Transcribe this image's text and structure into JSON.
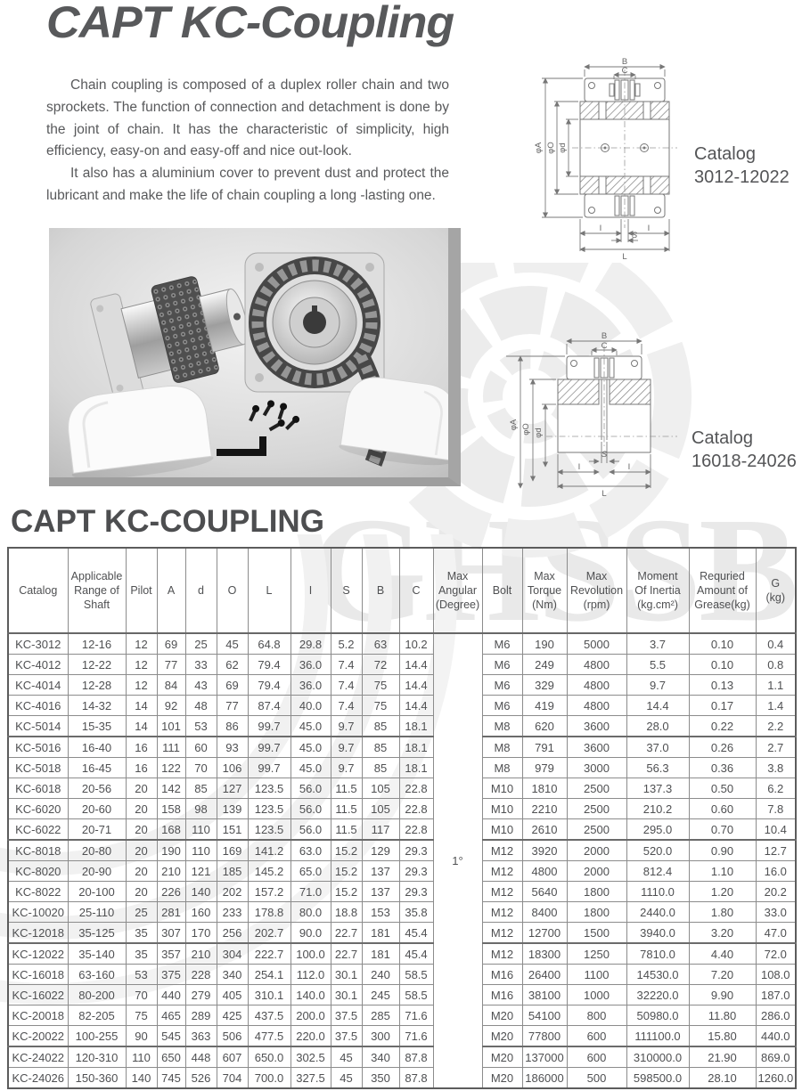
{
  "page": {
    "title": "CAPT KC-Coupling",
    "section_heading": "CAPT KC-COUPLING",
    "watermark": "GHSSB",
    "intro": {
      "para1": "Chain coupling is composed of a duplex roller chain and two sprockets. The function of connection and detachment is done by the joint of chain. It has the characteristic of simplicity, high efficiency, easy-on and easy-off and nice out-look.",
      "para2": "It also has a aluminium cover to prevent dust and protect the lubricant and make the life of chain coupling a long -lasting one."
    }
  },
  "drawings": [
    {
      "caption": [
        "Catalog",
        "3012-12022"
      ],
      "labels": {
        "B": "B",
        "C": "C",
        "phiA": "φA",
        "phiO": "φO",
        "phid": "φd",
        "I_left": "I",
        "S": "S",
        "I_right": "I",
        "L": "L"
      }
    },
    {
      "caption": [
        "Catalog",
        "16018-24026"
      ],
      "labels": {
        "B": "B",
        "C": "C",
        "phiA": "φA",
        "phiO": "φO",
        "phid": "φd",
        "I_left": "I",
        "S": "S",
        "I_right": "I",
        "L": "L"
      }
    }
  ],
  "table": {
    "columns": [
      {
        "id": "catalog",
        "label": "Catalog"
      },
      {
        "id": "range",
        "label": "Applicable\nRange of\nShaft"
      },
      {
        "id": "pilot",
        "label": "Pilot"
      },
      {
        "id": "a",
        "label": "A"
      },
      {
        "id": "d",
        "label": "d"
      },
      {
        "id": "o",
        "label": "O"
      },
      {
        "id": "l",
        "label": "L"
      },
      {
        "id": "i",
        "label": "I"
      },
      {
        "id": "s",
        "label": "S"
      },
      {
        "id": "b",
        "label": "B"
      },
      {
        "id": "c",
        "label": "C"
      },
      {
        "id": "maxang",
        "label": "Max\nAngular\n(Degree)"
      },
      {
        "id": "bolt",
        "label": "Bolt"
      },
      {
        "id": "torque",
        "label": "Max\nTorque\n(Nm)"
      },
      {
        "id": "rev",
        "label": "Max\nRevolution\n(rpm)"
      },
      {
        "id": "inertia",
        "label": "Moment\nOf Inertia\n(kg.cm²)"
      },
      {
        "id": "grease",
        "label": "Requried\nAmount of\nGrease(kg)"
      },
      {
        "id": "g",
        "label": "G\n(kg)"
      }
    ],
    "row_col_ids": [
      "catalog",
      "range",
      "pilot",
      "a",
      "d",
      "o",
      "l",
      "i",
      "s",
      "b",
      "c",
      "bolt",
      "torque",
      "rev",
      "inertia",
      "grease",
      "g"
    ],
    "max_angular": "1°",
    "groups": [
      [
        [
          "KC-3012",
          "12-16",
          "12",
          "69",
          "25",
          "45",
          "64.8",
          "29.8",
          "5.2",
          "63",
          "10.2",
          "M6",
          "190",
          "5000",
          "3.7",
          "0.10",
          "0.4"
        ],
        [
          "KC-4012",
          "12-22",
          "12",
          "77",
          "33",
          "62",
          "79.4",
          "36.0",
          "7.4",
          "72",
          "14.4",
          "M6",
          "249",
          "4800",
          "5.5",
          "0.10",
          "0.8"
        ],
        [
          "KC-4014",
          "12-28",
          "12",
          "84",
          "43",
          "69",
          "79.4",
          "36.0",
          "7.4",
          "75",
          "14.4",
          "M6",
          "329",
          "4800",
          "9.7",
          "0.13",
          "1.1"
        ],
        [
          "KC-4016",
          "14-32",
          "14",
          "92",
          "48",
          "77",
          "87.4",
          "40.0",
          "7.4",
          "75",
          "14.4",
          "M6",
          "419",
          "4800",
          "14.4",
          "0.17",
          "1.4"
        ],
        [
          "KC-5014",
          "15-35",
          "14",
          "101",
          "53",
          "86",
          "99.7",
          "45.0",
          "9.7",
          "85",
          "18.1",
          "M8",
          "620",
          "3600",
          "28.0",
          "0.22",
          "2.2"
        ]
      ],
      [
        [
          "KC-5016",
          "16-40",
          "16",
          "111",
          "60",
          "93",
          "99.7",
          "45.0",
          "9.7",
          "85",
          "18.1",
          "M8",
          "791",
          "3600",
          "37.0",
          "0.26",
          "2.7"
        ],
        [
          "KC-5018",
          "16-45",
          "16",
          "122",
          "70",
          "106",
          "99.7",
          "45.0",
          "9.7",
          "85",
          "18.1",
          "M8",
          "979",
          "3000",
          "56.3",
          "0.36",
          "3.8"
        ],
        [
          "KC-6018",
          "20-56",
          "20",
          "142",
          "85",
          "127",
          "123.5",
          "56.0",
          "11.5",
          "105",
          "22.8",
          "M10",
          "1810",
          "2500",
          "137.3",
          "0.50",
          "6.2"
        ],
        [
          "KC-6020",
          "20-60",
          "20",
          "158",
          "98",
          "139",
          "123.5",
          "56.0",
          "11.5",
          "105",
          "22.8",
          "M10",
          "2210",
          "2500",
          "210.2",
          "0.60",
          "7.8"
        ],
        [
          "KC-6022",
          "20-71",
          "20",
          "168",
          "110",
          "151",
          "123.5",
          "56.0",
          "11.5",
          "117",
          "22.8",
          "M10",
          "2610",
          "2500",
          "295.0",
          "0.70",
          "10.4"
        ]
      ],
      [
        [
          "KC-8018",
          "20-80",
          "20",
          "190",
          "110",
          "169",
          "141.2",
          "63.0",
          "15.2",
          "129",
          "29.3",
          "M12",
          "3920",
          "2000",
          "520.0",
          "0.90",
          "12.7"
        ],
        [
          "KC-8020",
          "20-90",
          "20",
          "210",
          "121",
          "185",
          "145.2",
          "65.0",
          "15.2",
          "137",
          "29.3",
          "M12",
          "4800",
          "2000",
          "812.4",
          "1.10",
          "16.0"
        ],
        [
          "KC-8022",
          "20-100",
          "20",
          "226",
          "140",
          "202",
          "157.2",
          "71.0",
          "15.2",
          "137",
          "29.3",
          "M12",
          "5640",
          "1800",
          "1110.0",
          "1.20",
          "20.2"
        ],
        [
          "KC-10020",
          "25-110",
          "25",
          "281",
          "160",
          "233",
          "178.8",
          "80.0",
          "18.8",
          "153",
          "35.8",
          "M12",
          "8400",
          "1800",
          "2440.0",
          "1.80",
          "33.0"
        ],
        [
          "KC-12018",
          "35-125",
          "35",
          "307",
          "170",
          "256",
          "202.7",
          "90.0",
          "22.7",
          "181",
          "45.4",
          "M12",
          "12700",
          "1500",
          "3940.0",
          "3.20",
          "47.0"
        ]
      ],
      [
        [
          "KC-12022",
          "35-140",
          "35",
          "357",
          "210",
          "304",
          "222.7",
          "100.0",
          "22.7",
          "181",
          "45.4",
          "M12",
          "18300",
          "1250",
          "7810.0",
          "4.40",
          "72.0"
        ],
        [
          "KC-16018",
          "63-160",
          "53",
          "375",
          "228",
          "340",
          "254.1",
          "112.0",
          "30.1",
          "240",
          "58.5",
          "M16",
          "26400",
          "1100",
          "14530.0",
          "7.20",
          "108.0"
        ],
        [
          "KC-16022",
          "80-200",
          "70",
          "440",
          "279",
          "405",
          "310.1",
          "140.0",
          "30.1",
          "245",
          "58.5",
          "M16",
          "38100",
          "1000",
          "32220.0",
          "9.90",
          "187.0"
        ],
        [
          "KC-20018",
          "82-205",
          "75",
          "465",
          "289",
          "425",
          "437.5",
          "200.0",
          "37.5",
          "285",
          "71.6",
          "M20",
          "54100",
          "800",
          "50980.0",
          "11.80",
          "286.0"
        ],
        [
          "KC-20022",
          "100-255",
          "90",
          "545",
          "363",
          "506",
          "477.5",
          "220.0",
          "37.5",
          "300",
          "71.6",
          "M20",
          "77800",
          "600",
          "111100.0",
          "15.80",
          "440.0"
        ]
      ],
      [
        [
          "KC-24022",
          "120-310",
          "110",
          "650",
          "448",
          "607",
          "650.0",
          "302.5",
          "45",
          "340",
          "87.8",
          "M20",
          "137000",
          "600",
          "310000.0",
          "21.90",
          "869.0"
        ],
        [
          "KC-24026",
          "150-360",
          "140",
          "745",
          "526",
          "704",
          "700.0",
          "327.5",
          "45",
          "350",
          "87.8",
          "M20",
          "186000",
          "500",
          "598500.0",
          "28.10",
          "1260.0"
        ]
      ]
    ]
  }
}
